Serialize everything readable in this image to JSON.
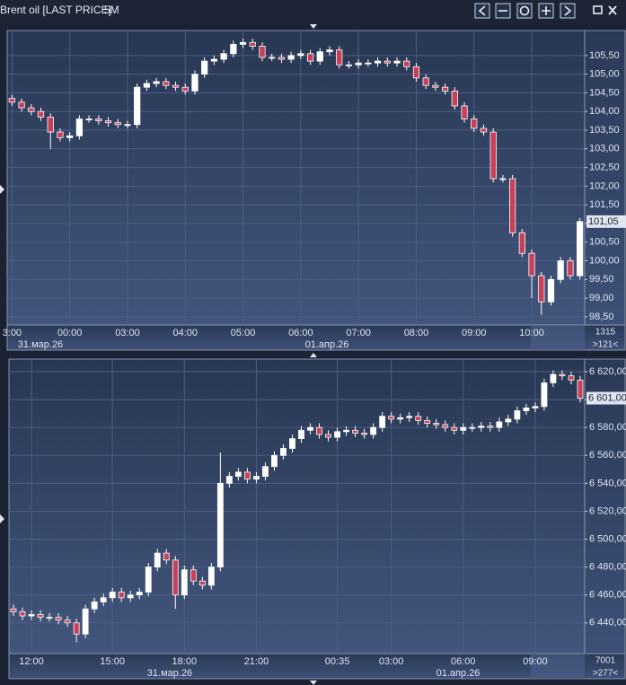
{
  "header": {
    "title": "Brent oil [LAST PRICE]",
    "interval": "5M"
  },
  "chart_data": [
    {
      "type": "candlestick",
      "up_color": "#ffffff",
      "down_color": "#c8405a",
      "grid": true,
      "categories": [
        "3:00",
        null,
        null,
        null,
        null,
        null,
        "00:00",
        null,
        null,
        null,
        null,
        null,
        "03:00",
        null,
        null,
        null,
        null,
        null,
        "04:00",
        null,
        null,
        null,
        null,
        null,
        "05:00",
        null,
        null,
        null,
        null,
        null,
        "06:00",
        null,
        null,
        null,
        null,
        null,
        "07:00",
        null,
        null,
        null,
        null,
        null,
        "08:00",
        null,
        null,
        null,
        null,
        null,
        "09:00",
        null,
        null,
        null,
        null,
        null,
        "10:00",
        null,
        null,
        null,
        null,
        null
      ],
      "open": [
        104.35,
        104.25,
        104.1,
        104.0,
        103.85,
        103.45,
        103.3,
        103.35,
        103.8,
        103.8,
        103.75,
        103.7,
        103.65,
        103.65,
        104.65,
        104.75,
        104.8,
        104.7,
        104.65,
        104.55,
        105.0,
        105.35,
        105.4,
        105.55,
        105.8,
        105.85,
        105.75,
        105.45,
        105.45,
        105.4,
        105.5,
        105.55,
        105.35,
        105.6,
        105.65,
        105.25,
        105.25,
        105.3,
        105.3,
        105.35,
        105.3,
        105.35,
        105.2,
        104.9,
        104.7,
        104.65,
        104.55,
        104.15,
        103.8,
        103.55,
        103.45,
        102.2,
        102.2,
        100.75,
        100.2,
        99.6,
        98.9,
        99.5,
        100.0,
        99.6
      ],
      "high": [
        104.45,
        104.35,
        104.2,
        104.1,
        103.95,
        103.55,
        103.45,
        103.9,
        103.9,
        103.9,
        103.85,
        103.8,
        103.75,
        104.75,
        104.85,
        104.9,
        104.9,
        104.8,
        104.75,
        105.1,
        105.45,
        105.5,
        105.65,
        105.9,
        105.95,
        105.95,
        105.85,
        105.55,
        105.55,
        105.6,
        105.65,
        105.65,
        105.7,
        105.75,
        105.75,
        105.35,
        105.4,
        105.4,
        105.45,
        105.45,
        105.45,
        105.45,
        105.3,
        105.0,
        104.8,
        104.75,
        104.65,
        104.25,
        103.9,
        103.65,
        103.55,
        102.3,
        102.3,
        100.85,
        100.3,
        99.7,
        99.6,
        100.1,
        100.1,
        101.15
      ],
      "low": [
        104.15,
        104.0,
        103.9,
        103.75,
        103.0,
        103.2,
        103.2,
        103.25,
        103.7,
        103.65,
        103.6,
        103.55,
        103.55,
        103.55,
        104.55,
        104.65,
        104.6,
        104.55,
        104.45,
        104.45,
        104.9,
        105.25,
        105.3,
        105.45,
        105.7,
        105.65,
        105.35,
        105.35,
        105.3,
        105.3,
        105.4,
        105.25,
        105.25,
        105.5,
        105.15,
        105.15,
        105.15,
        105.2,
        105.2,
        105.2,
        105.2,
        105.1,
        104.8,
        104.6,
        104.55,
        104.45,
        104.05,
        103.7,
        103.45,
        103.35,
        102.1,
        102.1,
        100.65,
        100.1,
        99.0,
        98.55,
        98.8,
        99.4,
        99.5,
        99.5
      ],
      "close": [
        104.25,
        104.1,
        104.0,
        103.85,
        103.45,
        103.3,
        103.35,
        103.8,
        103.8,
        103.75,
        103.7,
        103.65,
        103.65,
        104.65,
        104.75,
        104.8,
        104.7,
        104.65,
        104.55,
        105.0,
        105.35,
        105.4,
        105.55,
        105.8,
        105.85,
        105.75,
        105.45,
        105.45,
        105.4,
        105.5,
        105.55,
        105.35,
        105.6,
        105.65,
        105.25,
        105.25,
        105.3,
        105.3,
        105.35,
        105.3,
        105.35,
        105.2,
        104.9,
        104.7,
        104.65,
        104.55,
        104.15,
        103.8,
        103.55,
        103.45,
        102.2,
        102.2,
        100.75,
        100.2,
        99.6,
        98.9,
        99.5,
        100.0,
        99.6,
        101.05
      ],
      "ylim": [
        98.28,
        106.17
      ],
      "yticks": [
        {
          "value": 98.5,
          "label": "98,50"
        },
        {
          "value": 99,
          "label": "99,00"
        },
        {
          "value": 99.5,
          "label": "99,50"
        },
        {
          "value": 100,
          "label": "100,00"
        },
        {
          "value": 100.5,
          "label": "100,50"
        },
        {
          "value": 101,
          "label": "101,00"
        },
        {
          "value": 101.5,
          "label": "101,50"
        },
        {
          "value": 102,
          "label": "102,00"
        },
        {
          "value": 102.5,
          "label": "102,50"
        },
        {
          "value": 103,
          "label": "103,00"
        },
        {
          "value": 103.5,
          "label": "103,50"
        },
        {
          "value": 104,
          "label": "104,00"
        },
        {
          "value": 104.5,
          "label": "104,50"
        },
        {
          "value": 105,
          "label": "105,00"
        },
        {
          "value": 105.5,
          "label": "105,50"
        }
      ],
      "last_price": {
        "value": 101.05,
        "label": "101,05"
      },
      "dates": [
        "31.мар.26",
        "01.апр.26"
      ],
      "counters": [
        "1315",
        ">121<"
      ]
    },
    {
      "type": "candlestick",
      "up_color": "#ffffff",
      "down_color": "#c8405a",
      "grid": true,
      "categories": [
        null,
        null,
        "12:00",
        null,
        null,
        null,
        null,
        null,
        null,
        null,
        null,
        "15:00",
        null,
        null,
        null,
        null,
        null,
        null,
        null,
        "18:00",
        null,
        null,
        null,
        null,
        null,
        null,
        null,
        "21:00",
        null,
        null,
        null,
        null,
        null,
        null,
        null,
        null,
        "00:35",
        null,
        null,
        null,
        null,
        null,
        "03:00",
        null,
        null,
        null,
        null,
        null,
        null,
        null,
        "06:00",
        null,
        null,
        null,
        null,
        null,
        null,
        null,
        "09:00",
        null,
        null,
        null,
        null,
        null
      ],
      "open": [
        6450,
        6448,
        6445,
        6446,
        6444,
        6444,
        6442,
        6440,
        6432,
        6450,
        6455,
        6458,
        6462,
        6458,
        6460,
        6462,
        6480,
        6490,
        6485,
        6460,
        6478,
        6470,
        6467,
        6480,
        6540,
        6545,
        6548,
        6543,
        6545,
        6552,
        6560,
        6565,
        6572,
        6578,
        6580,
        6575,
        6573,
        6577,
        6578,
        6576,
        6575,
        6580,
        6588,
        6586,
        6587,
        6588,
        6585,
        6583,
        6582,
        6580,
        6578,
        6580,
        6580,
        6581,
        6580,
        6584,
        6586,
        6592,
        6594,
        6595,
        6612,
        6618,
        6617,
        6614
      ],
      "high": [
        6453,
        6451,
        6449,
        6449,
        6447,
        6447,
        6445,
        6443,
        6453,
        6458,
        6461,
        6465,
        6465,
        6463,
        6465,
        6483,
        6493,
        6493,
        6488,
        6481,
        6481,
        6473,
        6483,
        6562,
        6548,
        6551,
        6551,
        6548,
        6555,
        6563,
        6568,
        6575,
        6581,
        6583,
        6583,
        6578,
        6580,
        6581,
        6581,
        6579,
        6583,
        6591,
        6591,
        6590,
        6591,
        6591,
        6588,
        6586,
        6585,
        6583,
        6583,
        6583,
        6584,
        6584,
        6587,
        6589,
        6595,
        6597,
        6598,
        6615,
        6621,
        6621,
        6620,
        6617
      ],
      "low": [
        6445,
        6442,
        6442,
        6441,
        6441,
        6439,
        6437,
        6426,
        6429,
        6447,
        6452,
        6455,
        6455,
        6455,
        6457,
        6459,
        6477,
        6482,
        6450,
        6457,
        6467,
        6464,
        6464,
        6477,
        6537,
        6542,
        6540,
        6540,
        6542,
        6549,
        6557,
        6562,
        6569,
        6575,
        6572,
        6570,
        6570,
        6574,
        6573,
        6572,
        6572,
        6577,
        6583,
        6583,
        6584,
        6582,
        6580,
        6579,
        6577,
        6575,
        6575,
        6577,
        6577,
        6577,
        6577,
        6581,
        6583,
        6589,
        6591,
        6592,
        6609,
        6614,
        6611,
        6598
      ],
      "close": [
        6448,
        6445,
        6446,
        6444,
        6444,
        6442,
        6440,
        6432,
        6450,
        6455,
        6458,
        6462,
        6458,
        6460,
        6462,
        6480,
        6490,
        6485,
        6460,
        6478,
        6470,
        6467,
        6480,
        6540,
        6545,
        6548,
        6543,
        6545,
        6552,
        6560,
        6565,
        6572,
        6578,
        6580,
        6575,
        6573,
        6577,
        6578,
        6576,
        6575,
        6580,
        6588,
        6586,
        6587,
        6588,
        6585,
        6583,
        6582,
        6580,
        6578,
        6580,
        6580,
        6581,
        6580,
        6584,
        6586,
        6592,
        6594,
        6595,
        6612,
        6618,
        6617,
        6614,
        6601
      ],
      "ylim": [
        6418,
        6629
      ],
      "yticks": [
        {
          "value": 6440,
          "label": "6 440,00"
        },
        {
          "value": 6460,
          "label": "6 460,00"
        },
        {
          "value": 6480,
          "label": "6 480,00"
        },
        {
          "value": 6500,
          "label": "6 500,00"
        },
        {
          "value": 6520,
          "label": "6 520,00"
        },
        {
          "value": 6540,
          "label": "6 540,00"
        },
        {
          "value": 6560,
          "label": "6 560,00"
        },
        {
          "value": 6580,
          "label": "6 580,00"
        },
        {
          "value": 6600,
          "label": "6 600,00"
        },
        {
          "value": 6620,
          "label": "6 620,00"
        }
      ],
      "last_price": {
        "value": 6601,
        "label": "6 601,00"
      },
      "dates": [
        "31.мар.26",
        "01.апр.26"
      ],
      "counters": [
        "7001",
        ">277<"
      ]
    }
  ]
}
